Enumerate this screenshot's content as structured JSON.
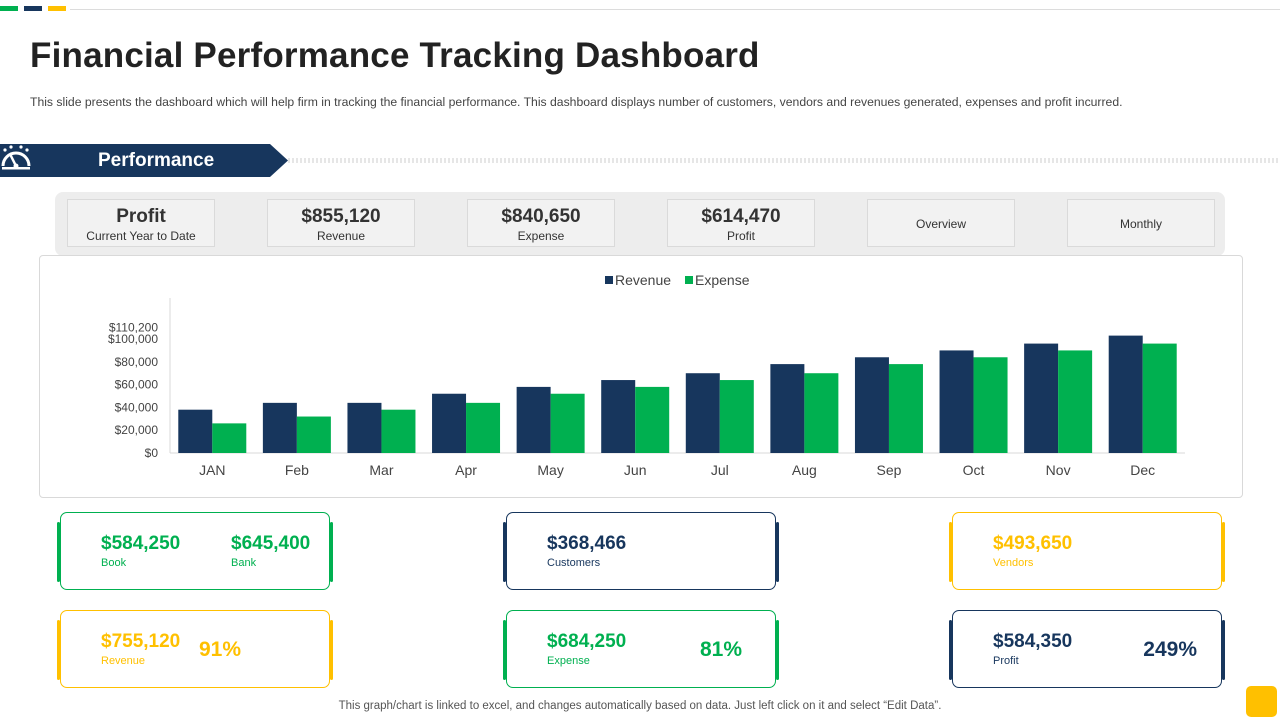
{
  "header": {
    "title": "Financial Performance Tracking Dashboard",
    "subtitle": "This slide presents the dashboard which will help firm in tracking the financial performance. This dashboard displays number of customers, vendors and revenues generated, expenses and profit incurred."
  },
  "section": {
    "label": "Performance",
    "icon": "speedometer-icon"
  },
  "kpis": [
    {
      "value": "Profit",
      "label": "Current Year to Date"
    },
    {
      "value": "$855,120",
      "label": "Revenue"
    },
    {
      "value": "$840,650",
      "label": "Expense"
    },
    {
      "value": "$614,470",
      "label": "Profit"
    },
    {
      "label": "Overview"
    },
    {
      "label": "Monthly"
    }
  ],
  "chart_data": {
    "type": "bar",
    "title": "",
    "categories": [
      "JAN",
      "Feb",
      "Mar",
      "Apr",
      "May",
      "Jun",
      "Jul",
      "Aug",
      "Sep",
      "Oct",
      "Nov",
      "Dec"
    ],
    "series": [
      {
        "name": "Revenue",
        "color": "#17365d",
        "values": [
          38000,
          44000,
          44000,
          52000,
          58000,
          64000,
          70000,
          78000,
          84000,
          90000,
          96000,
          103000
        ]
      },
      {
        "name": "Expense",
        "color": "#00b050",
        "values": [
          26000,
          32000,
          38000,
          44000,
          52000,
          58000,
          64000,
          70000,
          78000,
          84000,
          90000,
          96000
        ]
      }
    ],
    "yticks": [
      "$0",
      "$20,000",
      "$40,000",
      "$60,000",
      "$80,000",
      "$100,000",
      "$110,200"
    ],
    "ytick_values": [
      0,
      20000,
      40000,
      60000,
      80000,
      100000,
      110200
    ],
    "ylim": [
      0,
      136000
    ],
    "legend": "top-center",
    "grid": false
  },
  "cards": {
    "book_bank": {
      "v1": "$584,250",
      "l1": "Book",
      "v2": "$645,400",
      "l2": "Bank"
    },
    "customers": {
      "v1": "$368,466",
      "l1": "Customers"
    },
    "vendors": {
      "v1": "$493,650",
      "l1": "Vendors"
    },
    "revenue": {
      "v1": "$755,120",
      "l1": "Revenue",
      "pct": "91%"
    },
    "expense": {
      "v1": "$684,250",
      "l1": "Expense",
      "pct": "81%"
    },
    "profit": {
      "v1": "$584,350",
      "l1": "Profit",
      "pct": "249%"
    }
  },
  "colors": {
    "navy": "#17365d",
    "green": "#00b050",
    "yellow": "#ffc000"
  },
  "footer": {
    "note": "This graph/chart is linked to excel, and changes automatically based on data. Just left click on it and select “Edit Data”."
  }
}
